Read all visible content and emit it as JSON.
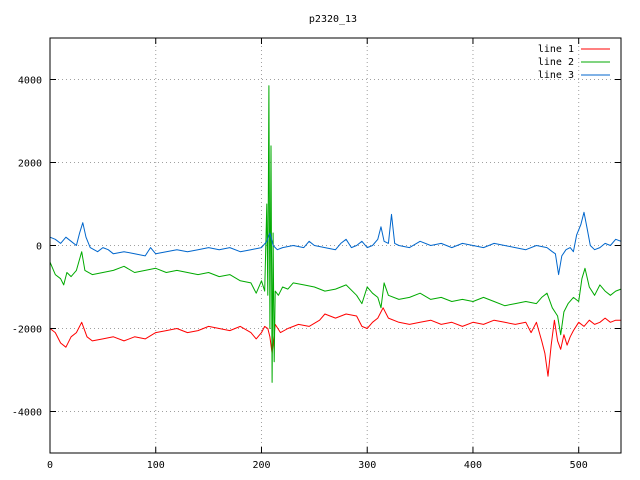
{
  "chart_data": {
    "type": "line",
    "title": "p2320_13",
    "xlabel": "",
    "ylabel": "",
    "xlim": [
      0,
      540
    ],
    "ylim": [
      -5000,
      5000
    ],
    "xticks": [
      0,
      100,
      200,
      300,
      400,
      500
    ],
    "yticks": [
      -4000,
      -2000,
      0,
      2000,
      4000
    ],
    "grid": true,
    "legend_position": "top-right",
    "series": [
      {
        "name": "line 1",
        "color": "#ff0000",
        "points": [
          [
            0,
            -2000
          ],
          [
            5,
            -2100
          ],
          [
            10,
            -2350
          ],
          [
            15,
            -2450
          ],
          [
            20,
            -2200
          ],
          [
            25,
            -2100
          ],
          [
            30,
            -1850
          ],
          [
            35,
            -2200
          ],
          [
            40,
            -2300
          ],
          [
            50,
            -2250
          ],
          [
            60,
            -2200
          ],
          [
            70,
            -2300
          ],
          [
            80,
            -2200
          ],
          [
            90,
            -2250
          ],
          [
            100,
            -2100
          ],
          [
            110,
            -2050
          ],
          [
            120,
            -2000
          ],
          [
            130,
            -2100
          ],
          [
            140,
            -2050
          ],
          [
            150,
            -1950
          ],
          [
            160,
            -2000
          ],
          [
            170,
            -2050
          ],
          [
            180,
            -1950
          ],
          [
            190,
            -2100
          ],
          [
            195,
            -2250
          ],
          [
            200,
            -2100
          ],
          [
            203,
            -1950
          ],
          [
            206,
            -2000
          ],
          [
            208,
            -2200
          ],
          [
            210,
            -2600
          ],
          [
            213,
            -1900
          ],
          [
            218,
            -2100
          ],
          [
            225,
            -2000
          ],
          [
            235,
            -1900
          ],
          [
            245,
            -1950
          ],
          [
            255,
            -1800
          ],
          [
            260,
            -1650
          ],
          [
            270,
            -1750
          ],
          [
            280,
            -1650
          ],
          [
            290,
            -1700
          ],
          [
            295,
            -1950
          ],
          [
            300,
            -2000
          ],
          [
            305,
            -1850
          ],
          [
            310,
            -1750
          ],
          [
            315,
            -1500
          ],
          [
            320,
            -1750
          ],
          [
            330,
            -1850
          ],
          [
            340,
            -1900
          ],
          [
            350,
            -1850
          ],
          [
            360,
            -1800
          ],
          [
            370,
            -1900
          ],
          [
            380,
            -1850
          ],
          [
            390,
            -1950
          ],
          [
            400,
            -1850
          ],
          [
            410,
            -1900
          ],
          [
            420,
            -1800
          ],
          [
            430,
            -1850
          ],
          [
            440,
            -1900
          ],
          [
            450,
            -1850
          ],
          [
            455,
            -2100
          ],
          [
            460,
            -1850
          ],
          [
            465,
            -2300
          ],
          [
            468,
            -2600
          ],
          [
            471,
            -3150
          ],
          [
            474,
            -2400
          ],
          [
            477,
            -1800
          ],
          [
            480,
            -2300
          ],
          [
            483,
            -2500
          ],
          [
            486,
            -2150
          ],
          [
            489,
            -2400
          ],
          [
            492,
            -2200
          ],
          [
            495,
            -2050
          ],
          [
            500,
            -1850
          ],
          [
            505,
            -1950
          ],
          [
            510,
            -1800
          ],
          [
            515,
            -1900
          ],
          [
            520,
            -1850
          ],
          [
            525,
            -1750
          ],
          [
            530,
            -1850
          ],
          [
            535,
            -1800
          ],
          [
            540,
            -1800
          ]
        ]
      },
      {
        "name": "line 2",
        "color": "#00aa00",
        "points": [
          [
            0,
            -400
          ],
          [
            5,
            -700
          ],
          [
            10,
            -800
          ],
          [
            13,
            -950
          ],
          [
            16,
            -650
          ],
          [
            20,
            -750
          ],
          [
            25,
            -600
          ],
          [
            30,
            -150
          ],
          [
            33,
            -600
          ],
          [
            40,
            -700
          ],
          [
            50,
            -650
          ],
          [
            60,
            -600
          ],
          [
            70,
            -500
          ],
          [
            80,
            -650
          ],
          [
            90,
            -600
          ],
          [
            100,
            -550
          ],
          [
            110,
            -650
          ],
          [
            120,
            -600
          ],
          [
            130,
            -650
          ],
          [
            140,
            -700
          ],
          [
            150,
            -650
          ],
          [
            160,
            -750
          ],
          [
            170,
            -700
          ],
          [
            180,
            -850
          ],
          [
            190,
            -900
          ],
          [
            195,
            -1150
          ],
          [
            200,
            -850
          ],
          [
            203,
            -1100
          ],
          [
            205,
            1000
          ],
          [
            206,
            -1200
          ],
          [
            207,
            3850
          ],
          [
            208,
            -2000
          ],
          [
            209,
            2400
          ],
          [
            210,
            -3300
          ],
          [
            211,
            300
          ],
          [
            212,
            -2800
          ],
          [
            213,
            -1100
          ],
          [
            216,
            -1200
          ],
          [
            220,
            -1000
          ],
          [
            225,
            -1050
          ],
          [
            230,
            -900
          ],
          [
            240,
            -950
          ],
          [
            250,
            -1000
          ],
          [
            260,
            -1100
          ],
          [
            270,
            -1050
          ],
          [
            280,
            -950
          ],
          [
            290,
            -1200
          ],
          [
            295,
            -1400
          ],
          [
            300,
            -1000
          ],
          [
            305,
            -1150
          ],
          [
            310,
            -1250
          ],
          [
            313,
            -1500
          ],
          [
            316,
            -900
          ],
          [
            320,
            -1200
          ],
          [
            330,
            -1300
          ],
          [
            340,
            -1250
          ],
          [
            350,
            -1150
          ],
          [
            360,
            -1300
          ],
          [
            370,
            -1250
          ],
          [
            380,
            -1350
          ],
          [
            390,
            -1300
          ],
          [
            400,
            -1350
          ],
          [
            410,
            -1250
          ],
          [
            420,
            -1350
          ],
          [
            430,
            -1450
          ],
          [
            440,
            -1400
          ],
          [
            450,
            -1350
          ],
          [
            460,
            -1400
          ],
          [
            465,
            -1250
          ],
          [
            470,
            -1150
          ],
          [
            475,
            -1500
          ],
          [
            480,
            -1700
          ],
          [
            483,
            -2150
          ],
          [
            486,
            -1600
          ],
          [
            490,
            -1400
          ],
          [
            495,
            -1250
          ],
          [
            500,
            -1350
          ],
          [
            503,
            -800
          ],
          [
            506,
            -550
          ],
          [
            510,
            -1000
          ],
          [
            515,
            -1200
          ],
          [
            520,
            -950
          ],
          [
            525,
            -1100
          ],
          [
            530,
            -1200
          ],
          [
            535,
            -1100
          ],
          [
            540,
            -1050
          ]
        ]
      },
      {
        "name": "line 3",
        "color": "#0066cc",
        "points": [
          [
            0,
            200
          ],
          [
            5,
            150
          ],
          [
            10,
            50
          ],
          [
            15,
            200
          ],
          [
            20,
            100
          ],
          [
            25,
            0
          ],
          [
            28,
            300
          ],
          [
            31,
            550
          ],
          [
            34,
            200
          ],
          [
            38,
            -50
          ],
          [
            45,
            -150
          ],
          [
            50,
            -50
          ],
          [
            55,
            -100
          ],
          [
            60,
            -200
          ],
          [
            70,
            -150
          ],
          [
            80,
            -200
          ],
          [
            90,
            -250
          ],
          [
            95,
            -50
          ],
          [
            100,
            -200
          ],
          [
            110,
            -150
          ],
          [
            120,
            -100
          ],
          [
            130,
            -150
          ],
          [
            140,
            -100
          ],
          [
            150,
            -50
          ],
          [
            160,
            -100
          ],
          [
            170,
            -50
          ],
          [
            180,
            -150
          ],
          [
            190,
            -100
          ],
          [
            200,
            -50
          ],
          [
            205,
            100
          ],
          [
            208,
            300
          ],
          [
            211,
            0
          ],
          [
            215,
            -100
          ],
          [
            220,
            -50
          ],
          [
            230,
            0
          ],
          [
            240,
            -50
          ],
          [
            245,
            100
          ],
          [
            250,
            0
          ],
          [
            260,
            -50
          ],
          [
            270,
            -100
          ],
          [
            275,
            50
          ],
          [
            280,
            150
          ],
          [
            285,
            -50
          ],
          [
            290,
            0
          ],
          [
            295,
            100
          ],
          [
            300,
            -50
          ],
          [
            305,
            0
          ],
          [
            310,
            150
          ],
          [
            313,
            450
          ],
          [
            316,
            100
          ],
          [
            320,
            50
          ],
          [
            323,
            750
          ],
          [
            326,
            50
          ],
          [
            330,
            0
          ],
          [
            340,
            -50
          ],
          [
            350,
            100
          ],
          [
            360,
            0
          ],
          [
            370,
            50
          ],
          [
            380,
            -50
          ],
          [
            390,
            50
          ],
          [
            400,
            0
          ],
          [
            410,
            -50
          ],
          [
            420,
            50
          ],
          [
            430,
            0
          ],
          [
            440,
            -50
          ],
          [
            450,
            -100
          ],
          [
            460,
            0
          ],
          [
            470,
            -50
          ],
          [
            475,
            -150
          ],
          [
            478,
            -200
          ],
          [
            481,
            -700
          ],
          [
            484,
            -250
          ],
          [
            488,
            -100
          ],
          [
            492,
            -50
          ],
          [
            495,
            -150
          ],
          [
            498,
            250
          ],
          [
            502,
            500
          ],
          [
            505,
            800
          ],
          [
            508,
            400
          ],
          [
            511,
            0
          ],
          [
            515,
            -100
          ],
          [
            520,
            -50
          ],
          [
            525,
            50
          ],
          [
            530,
            0
          ],
          [
            535,
            150
          ],
          [
            540,
            100
          ]
        ]
      }
    ]
  }
}
